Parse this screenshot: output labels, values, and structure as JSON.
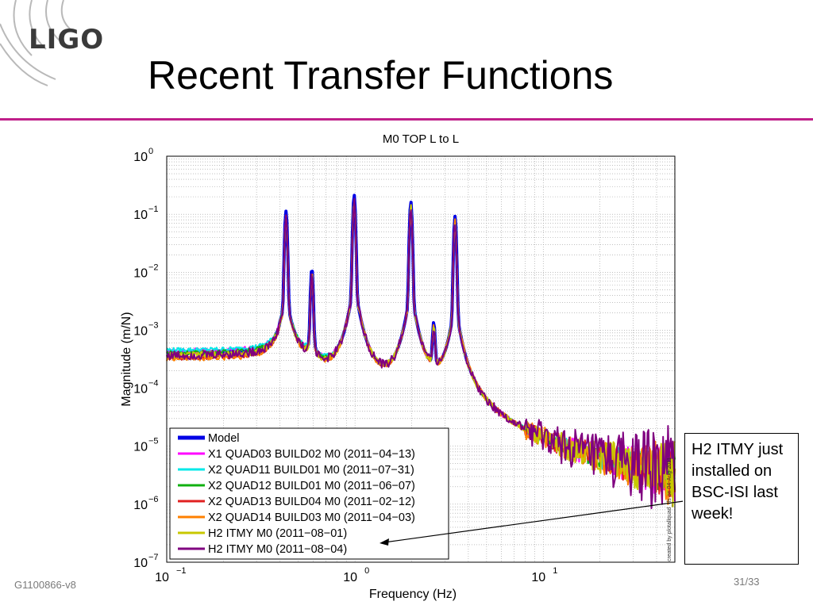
{
  "slide": {
    "logo_text": "LIGO",
    "title": "Recent Transfer Functions",
    "doc_id": "G1100866-v8",
    "page": "31/33",
    "callout": "H2 ITMY just installed on BSC-ISI last week!",
    "accent_color": "#c0208a"
  },
  "chart_data": {
    "type": "line",
    "title": "M0 TOP L to L",
    "xlabel": "Frequency (Hz)",
    "ylabel": "Magnitude (m/N)",
    "x_scale": "log",
    "y_scale": "log",
    "xlim": [
      0.1,
      50
    ],
    "ylim": [
      1e-07,
      1
    ],
    "x_tick_labels": [
      {
        "value": 0.1,
        "label": "10",
        "exp": "−1"
      },
      {
        "value": 1,
        "label": "10",
        "exp": "0"
      },
      {
        "value": 10,
        "label": "10",
        "exp": "1"
      }
    ],
    "y_tick_labels": [
      {
        "value": 1,
        "label": "10",
        "exp": "0"
      },
      {
        "value": 0.1,
        "label": "10",
        "exp": "−1"
      },
      {
        "value": 0.01,
        "label": "10",
        "exp": "−2"
      },
      {
        "value": 0.001,
        "label": "10",
        "exp": "−3"
      },
      {
        "value": 0.0001,
        "label": "10",
        "exp": "−4"
      },
      {
        "value": 1e-05,
        "label": "10",
        "exp": "−5"
      },
      {
        "value": 1e-06,
        "label": "10",
        "exp": "−6"
      },
      {
        "value": 1e-07,
        "label": "10",
        "exp": "−7"
      }
    ],
    "grid": true,
    "legend_position": "bottom-left",
    "side_note": "created by plotallquad_tfs on 04-Aug-2011",
    "resonances": [
      {
        "f": 0.43,
        "peak": 0.11
      },
      {
        "f": 0.59,
        "peak": 0.011
      },
      {
        "f": 0.99,
        "peak": 0.21
      },
      {
        "f": 1.98,
        "peak": 0.16
      },
      {
        "f": 2.62,
        "peak": 0.0011
      },
      {
        "f": 3.4,
        "peak": 0.09
      }
    ],
    "series": [
      {
        "name": "Model",
        "color": "#0000e6",
        "width": 4,
        "lowfreq_level": 0.0004,
        "noise": 0
      },
      {
        "name": "X1 QUAD03 BUILD02 M0 (2011−04−13)",
        "color": "#ff00ff",
        "width": 2,
        "lowfreq_level": 0.00043,
        "noise": 0.25
      },
      {
        "name": "X2 QUAD11 BUILD01 M0 (2011−07−31)",
        "color": "#00e8e8",
        "width": 2,
        "lowfreq_level": 0.00045,
        "noise": 0.2
      },
      {
        "name": "X2 QUAD12 BUILD01 M0 (2011−06−07)",
        "color": "#10b010",
        "width": 2,
        "lowfreq_level": 0.0004,
        "noise": 0.2
      },
      {
        "name": "X2 QUAD13 BUILD04 M0 (2011−02−12)",
        "color": "#e02020",
        "width": 2,
        "lowfreq_level": 0.00033,
        "noise": 0.25
      },
      {
        "name": "X2 QUAD14 BUILD03 M0 (2011−04−03)",
        "color": "#ff8000",
        "width": 2,
        "lowfreq_level": 0.00032,
        "noise": 0.3
      },
      {
        "name": "H2 ITMY  M0 (2011−08−01)",
        "color": "#c8c800",
        "width": 2,
        "lowfreq_level": 0.00036,
        "noise": 0.3
      },
      {
        "name": "H2 ITMY  M0 (2011−08−04)",
        "color": "#800080",
        "width": 2,
        "lowfreq_level": 0.00036,
        "noise": 0.45
      }
    ]
  }
}
